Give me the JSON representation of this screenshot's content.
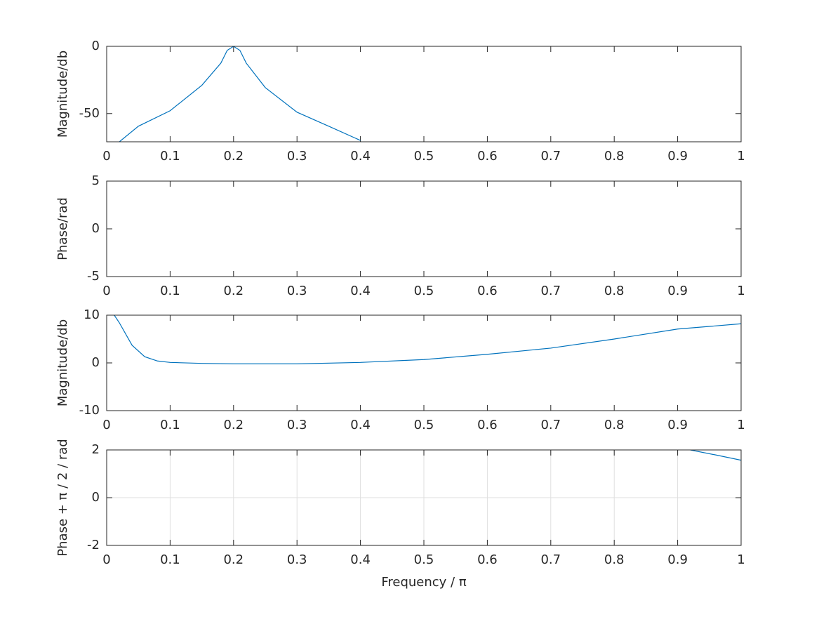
{
  "chart_data": [
    {
      "type": "line",
      "ylabel": "Magnitude/db",
      "xlim": [
        0,
        1
      ],
      "xticks": [
        0,
        0.1,
        0.2,
        0.3,
        0.4,
        0.5,
        0.6,
        0.7,
        0.8,
        0.9,
        1
      ],
      "ylim": [
        -71,
        0
      ],
      "yticks": [
        -50,
        0
      ],
      "grid": false,
      "series": [
        {
          "color": "#0072bd",
          "x": [
            0.02,
            0.05,
            0.1,
            0.15,
            0.18,
            0.19,
            0.2,
            0.21,
            0.22,
            0.25,
            0.3,
            0.35,
            0.4
          ],
          "values": [
            -71,
            -59.4,
            -47.9,
            -29,
            -12.5,
            -3,
            0,
            -3,
            -12.5,
            -30.7,
            -49,
            -59.4,
            -70
          ]
        }
      ]
    },
    {
      "type": "line",
      "ylabel": "Phase/rad",
      "xlim": [
        0,
        1
      ],
      "xticks": [
        0,
        0.1,
        0.2,
        0.3,
        0.4,
        0.5,
        0.6,
        0.7,
        0.8,
        0.9,
        1
      ],
      "ylim": [
        -5,
        5
      ],
      "yticks": [
        -5,
        0,
        5
      ],
      "grid": false,
      "series": []
    },
    {
      "type": "line",
      "ylabel": "Magnitude/db",
      "xlim": [
        0,
        1
      ],
      "xticks": [
        0,
        0.1,
        0.2,
        0.3,
        0.4,
        0.5,
        0.6,
        0.7,
        0.8,
        0.9,
        1
      ],
      "ylim": [
        -10,
        10
      ],
      "yticks": [
        -10,
        0,
        10
      ],
      "grid": false,
      "series": [
        {
          "color": "#0072bd",
          "x": [
            0.012,
            0.02,
            0.04,
            0.06,
            0.08,
            0.1,
            0.15,
            0.2,
            0.3,
            0.4,
            0.5,
            0.6,
            0.7,
            0.8,
            0.9,
            1
          ],
          "values": [
            10,
            8.4,
            3.7,
            1.3,
            0.4,
            0.1,
            -0.1,
            -0.2,
            -0.2,
            0.1,
            0.7,
            1.8,
            3.1,
            5.0,
            7.1,
            8.2
          ]
        }
      ]
    },
    {
      "type": "line",
      "ylabel": "Phase + π / 2 / rad",
      "xlabel": "Frequency / π",
      "xlim": [
        0,
        1
      ],
      "xticks": [
        0,
        0.1,
        0.2,
        0.3,
        0.4,
        0.5,
        0.6,
        0.7,
        0.8,
        0.9,
        1
      ],
      "ylim": [
        -2,
        2
      ],
      "yticks": [
        -2,
        0,
        2
      ],
      "grid": true,
      "series": [
        {
          "color": "#0072bd",
          "x": [
            0.92,
            0.96,
            1
          ],
          "values": [
            2,
            1.79,
            1.57
          ]
        }
      ]
    }
  ]
}
